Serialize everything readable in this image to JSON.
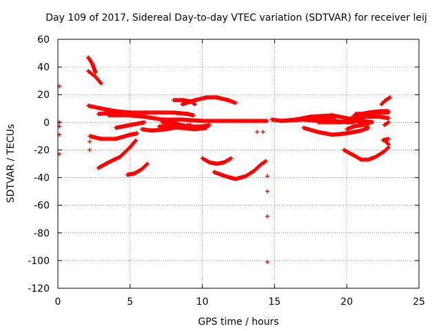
{
  "chart_data": {
    "type": "scatter",
    "title": "Day 109 of 2017, Sidereal Day-to-day VTEC variation (SDTVAR) for receiver leij",
    "xlabel": "GPS time / hours",
    "ylabel": "SDTVAR / TECUs",
    "xlim": [
      0,
      25
    ],
    "ylim": [
      -120,
      60
    ],
    "xticks": [
      "0",
      "5",
      "10",
      "15",
      "20",
      "25"
    ],
    "yticks": [
      "60",
      "40",
      "20",
      "0",
      "-20",
      "-40",
      "-60",
      "-80",
      "-100",
      "-120"
    ],
    "grid": true,
    "legend": "none",
    "marker": "plus",
    "color": "#ff0000",
    "points": [
      [
        0.1,
        26
      ],
      [
        0.1,
        0
      ],
      [
        0.1,
        -3
      ],
      [
        0.1,
        -9
      ],
      [
        0.1,
        -23
      ],
      [
        14.5,
        -39
      ],
      [
        14.5,
        -50
      ],
      [
        14.5,
        -68
      ],
      [
        14.5,
        -101
      ],
      [
        2.2,
        -14
      ],
      [
        2.2,
        -20
      ],
      [
        13.8,
        -7
      ],
      [
        14.2,
        -7
      ]
    ],
    "tracks": [
      [
        [
          2.1,
          47
        ],
        [
          2.4,
          42
        ],
        [
          2.6,
          36
        ]
      ],
      [
        [
          2.1,
          37
        ],
        [
          2.6,
          33
        ],
        [
          3.0,
          28
        ]
      ],
      [
        [
          2.1,
          12
        ],
        [
          3.0,
          10
        ],
        [
          4.0,
          8
        ],
        [
          5.0,
          7
        ]
      ],
      [
        [
          2.2,
          -10
        ],
        [
          3.0,
          -12
        ],
        [
          4.0,
          -12
        ],
        [
          5.0,
          -9
        ],
        [
          5.5,
          -8
        ]
      ],
      [
        [
          2.8,
          -33
        ],
        [
          3.5,
          -29
        ],
        [
          4.3,
          -25
        ],
        [
          5.0,
          -18
        ],
        [
          5.4,
          -13
        ]
      ],
      [
        [
          4.8,
          -38
        ],
        [
          5.3,
          -37
        ],
        [
          5.8,
          -34
        ],
        [
          6.2,
          -30
        ]
      ],
      [
        [
          2.8,
          6
        ],
        [
          4.0,
          7
        ],
        [
          6.0,
          7
        ],
        [
          8.0,
          7
        ],
        [
          9.0,
          6
        ],
        [
          9.4,
          5
        ]
      ],
      [
        [
          3.5,
          5
        ],
        [
          5.0,
          5
        ],
        [
          6.0,
          4
        ],
        [
          7.2,
          2
        ],
        [
          7.9,
          0
        ],
        [
          8.5,
          -2
        ]
      ],
      [
        [
          4.0,
          -4
        ],
        [
          5.0,
          -2
        ],
        [
          5.5,
          -1
        ],
        [
          6.0,
          0
        ]
      ],
      [
        [
          5.8,
          -5
        ],
        [
          6.5,
          -6
        ],
        [
          7.5,
          -5
        ],
        [
          8.5,
          -3
        ],
        [
          9.2,
          -2
        ]
      ],
      [
        [
          7.2,
          0
        ],
        [
          8.0,
          -1
        ],
        [
          9.0,
          -3
        ],
        [
          10.0,
          -3
        ],
        [
          10.5,
          -2
        ]
      ],
      [
        [
          7.3,
          2
        ],
        [
          8.5,
          2
        ],
        [
          10.0,
          1
        ],
        [
          11.5,
          1
        ],
        [
          13.0,
          1
        ],
        [
          14.5,
          1
        ]
      ],
      [
        [
          7.0,
          -3
        ],
        [
          8.5,
          -4
        ],
        [
          9.5,
          -5
        ],
        [
          10.3,
          -4
        ]
      ],
      [
        [
          8.0,
          16
        ],
        [
          8.7,
          16
        ],
        [
          9.2,
          15
        ],
        [
          9.5,
          13
        ]
      ],
      [
        [
          8.6,
          13
        ],
        [
          9.5,
          16
        ],
        [
          10.3,
          18
        ],
        [
          11.0,
          18
        ],
        [
          11.8,
          16
        ],
        [
          12.3,
          14
        ]
      ],
      [
        [
          10.0,
          -26
        ],
        [
          10.5,
          -29
        ],
        [
          11.0,
          -30
        ],
        [
          11.5,
          -29
        ],
        [
          12.0,
          -26
        ]
      ],
      [
        [
          10.8,
          -36
        ],
        [
          11.6,
          -39
        ],
        [
          12.3,
          -41
        ],
        [
          13.0,
          -39
        ],
        [
          13.6,
          -35
        ],
        [
          14.0,
          -31
        ],
        [
          14.4,
          -28
        ]
      ],
      [
        [
          14.8,
          2
        ],
        [
          15.5,
          1
        ],
        [
          16.5,
          2
        ],
        [
          17.5,
          3
        ],
        [
          18.5,
          3
        ],
        [
          19.2,
          2
        ]
      ],
      [
        [
          15.5,
          1
        ],
        [
          17.0,
          2
        ],
        [
          18.0,
          1
        ],
        [
          19.0,
          1
        ],
        [
          20.0,
          0
        ],
        [
          20.5,
          0
        ]
      ],
      [
        [
          16.5,
          2
        ],
        [
          17.5,
          4
        ],
        [
          19.0,
          5
        ],
        [
          20.0,
          3
        ],
        [
          21.0,
          1
        ],
        [
          21.8,
          0
        ]
      ],
      [
        [
          17.0,
          -4
        ],
        [
          18.0,
          -7
        ],
        [
          19.0,
          -9
        ],
        [
          20.0,
          -8
        ],
        [
          21.0,
          -6
        ],
        [
          21.5,
          -4
        ]
      ],
      [
        [
          18.0,
          0
        ],
        [
          19.5,
          0
        ],
        [
          20.5,
          1
        ],
        [
          21.5,
          0
        ]
      ],
      [
        [
          20.0,
          -5
        ],
        [
          20.5,
          -3
        ],
        [
          21.0,
          -2
        ],
        [
          21.5,
          -2
        ]
      ],
      [
        [
          20.5,
          5
        ],
        [
          21.5,
          7
        ],
        [
          22.3,
          8
        ],
        [
          22.9,
          8
        ]
      ],
      [
        [
          20.3,
          3
        ],
        [
          21.5,
          4
        ],
        [
          22.3,
          4
        ],
        [
          22.9,
          3
        ]
      ],
      [
        [
          20.6,
          6
        ],
        [
          21.2,
          6
        ],
        [
          22.0,
          7
        ],
        [
          22.9,
          7
        ]
      ],
      [
        [
          19.8,
          -20
        ],
        [
          20.5,
          -24
        ],
        [
          21.0,
          -27
        ],
        [
          21.5,
          -27
        ],
        [
          22.0,
          -25
        ],
        [
          22.6,
          -21
        ],
        [
          22.9,
          -18
        ]
      ],
      [
        [
          22.4,
          13
        ],
        [
          22.7,
          16
        ],
        [
          23.0,
          18
        ]
      ],
      [
        [
          22.5,
          -13
        ],
        [
          22.9,
          -12
        ]
      ],
      [
        [
          22.7,
          -14
        ],
        [
          22.9,
          -16
        ]
      ],
      [
        [
          22.6,
          -2
        ],
        [
          22.9,
          0
        ]
      ]
    ]
  }
}
